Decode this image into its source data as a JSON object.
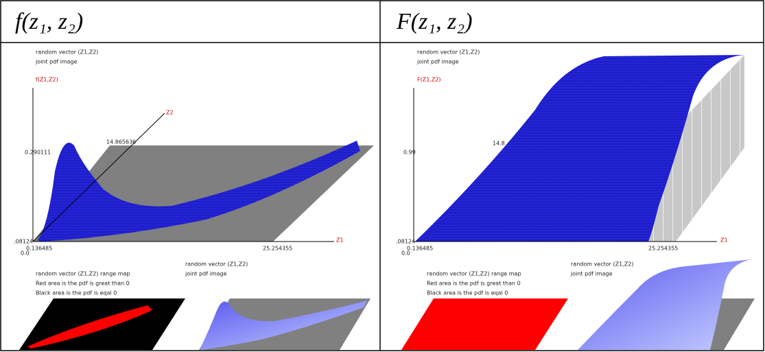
{
  "panels": [
    {
      "heading": "f(z₁, z₂)",
      "top_caption": [
        "random vector (Z1,Z2)",
        "joint pdf image"
      ],
      "vertical_axis": "f(Z1,Z2)",
      "depth_axis": "Z2",
      "depth_label": "14.865636",
      "vertical_label": "0.290111",
      "origin_labels": [
        ".08124",
        "0.136485",
        "0.0"
      ],
      "horizontal_label": "25.254355",
      "horizontal_axis": "Z1",
      "range_map_caption": [
        "random vector (Z1,Z2) range map",
        "Red area is the pdf is great than 0",
        "Black area is the pdf is eqal 0"
      ],
      "image_caption": [
        "random vector (Z1,Z2)",
        "joint pdf image"
      ]
    },
    {
      "heading": "F(z₁, z₂)",
      "top_caption": [
        "random vector (Z1,Z2)",
        "joint pdf image"
      ],
      "vertical_axis": "F(Z1,Z2)",
      "depth_label": "14.8",
      "vertical_label": "0.99",
      "origin_labels": [
        ".08124",
        "0.136485",
        "0.0"
      ],
      "horizontal_label": "25.254355",
      "horizontal_axis": "Z1",
      "range_map_caption": [
        "random vector (Z1,Z2) range map",
        "Red area is the pdf is great than 0",
        "Black area is the pdf is eqal 0"
      ],
      "image_caption": [
        "random vector (Z1,Z2)",
        "joint pdf image"
      ]
    }
  ]
}
